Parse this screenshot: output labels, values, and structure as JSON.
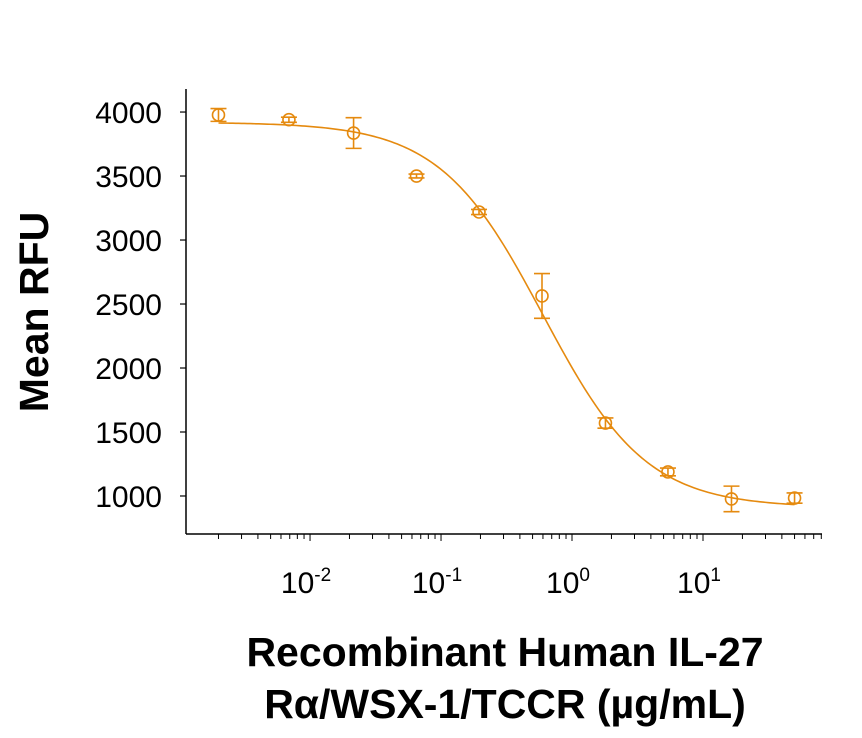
{
  "chart_data": {
    "type": "scatter",
    "title": "",
    "xlabel_lines": [
      "Recombinant Human IL-27",
      "Rα/WSX-1/TCCR (µg/mL)"
    ],
    "ylabel": "Mean RFU",
    "xscale": "log",
    "xlim": [
      0.00113,
      81
    ],
    "ylim": [
      703,
      4180
    ],
    "grid": false,
    "legend": "none",
    "color": "#E58A0F",
    "yticks": [
      1000,
      1500,
      2000,
      2500,
      3000,
      3500,
      4000
    ],
    "ytick_labels": [
      "1000",
      "1500",
      "2000",
      "2500",
      "3000",
      "3500",
      "4000"
    ],
    "xticks": [
      0.01,
      0.1,
      1,
      10
    ],
    "xtick_labels": [
      {
        "base": "10",
        "exp": "-2"
      },
      {
        "base": "10",
        "exp": "-1"
      },
      {
        "base": "10",
        "exp": "0"
      },
      {
        "base": "10",
        "exp": "1"
      }
    ],
    "series": [
      {
        "name": "Mean RFU",
        "marker": "open-circle",
        "x": [
          0.002,
          0.0069,
          0.0215,
          0.065,
          0.195,
          0.59,
          1.8,
          5.4,
          16.5,
          50
        ],
        "y": [
          3977,
          3940,
          3836,
          3500,
          3219,
          2563,
          1570,
          1188,
          977,
          984
        ],
        "yerr": [
          50,
          20,
          120,
          15,
          20,
          175,
          40,
          30,
          100,
          40
        ]
      }
    ],
    "fit": {
      "model": "4PL",
      "top": 3920,
      "bottom": 910,
      "ec50": 0.6,
      "hill": 1.1,
      "x_range": [
        0.002,
        50
      ]
    }
  }
}
